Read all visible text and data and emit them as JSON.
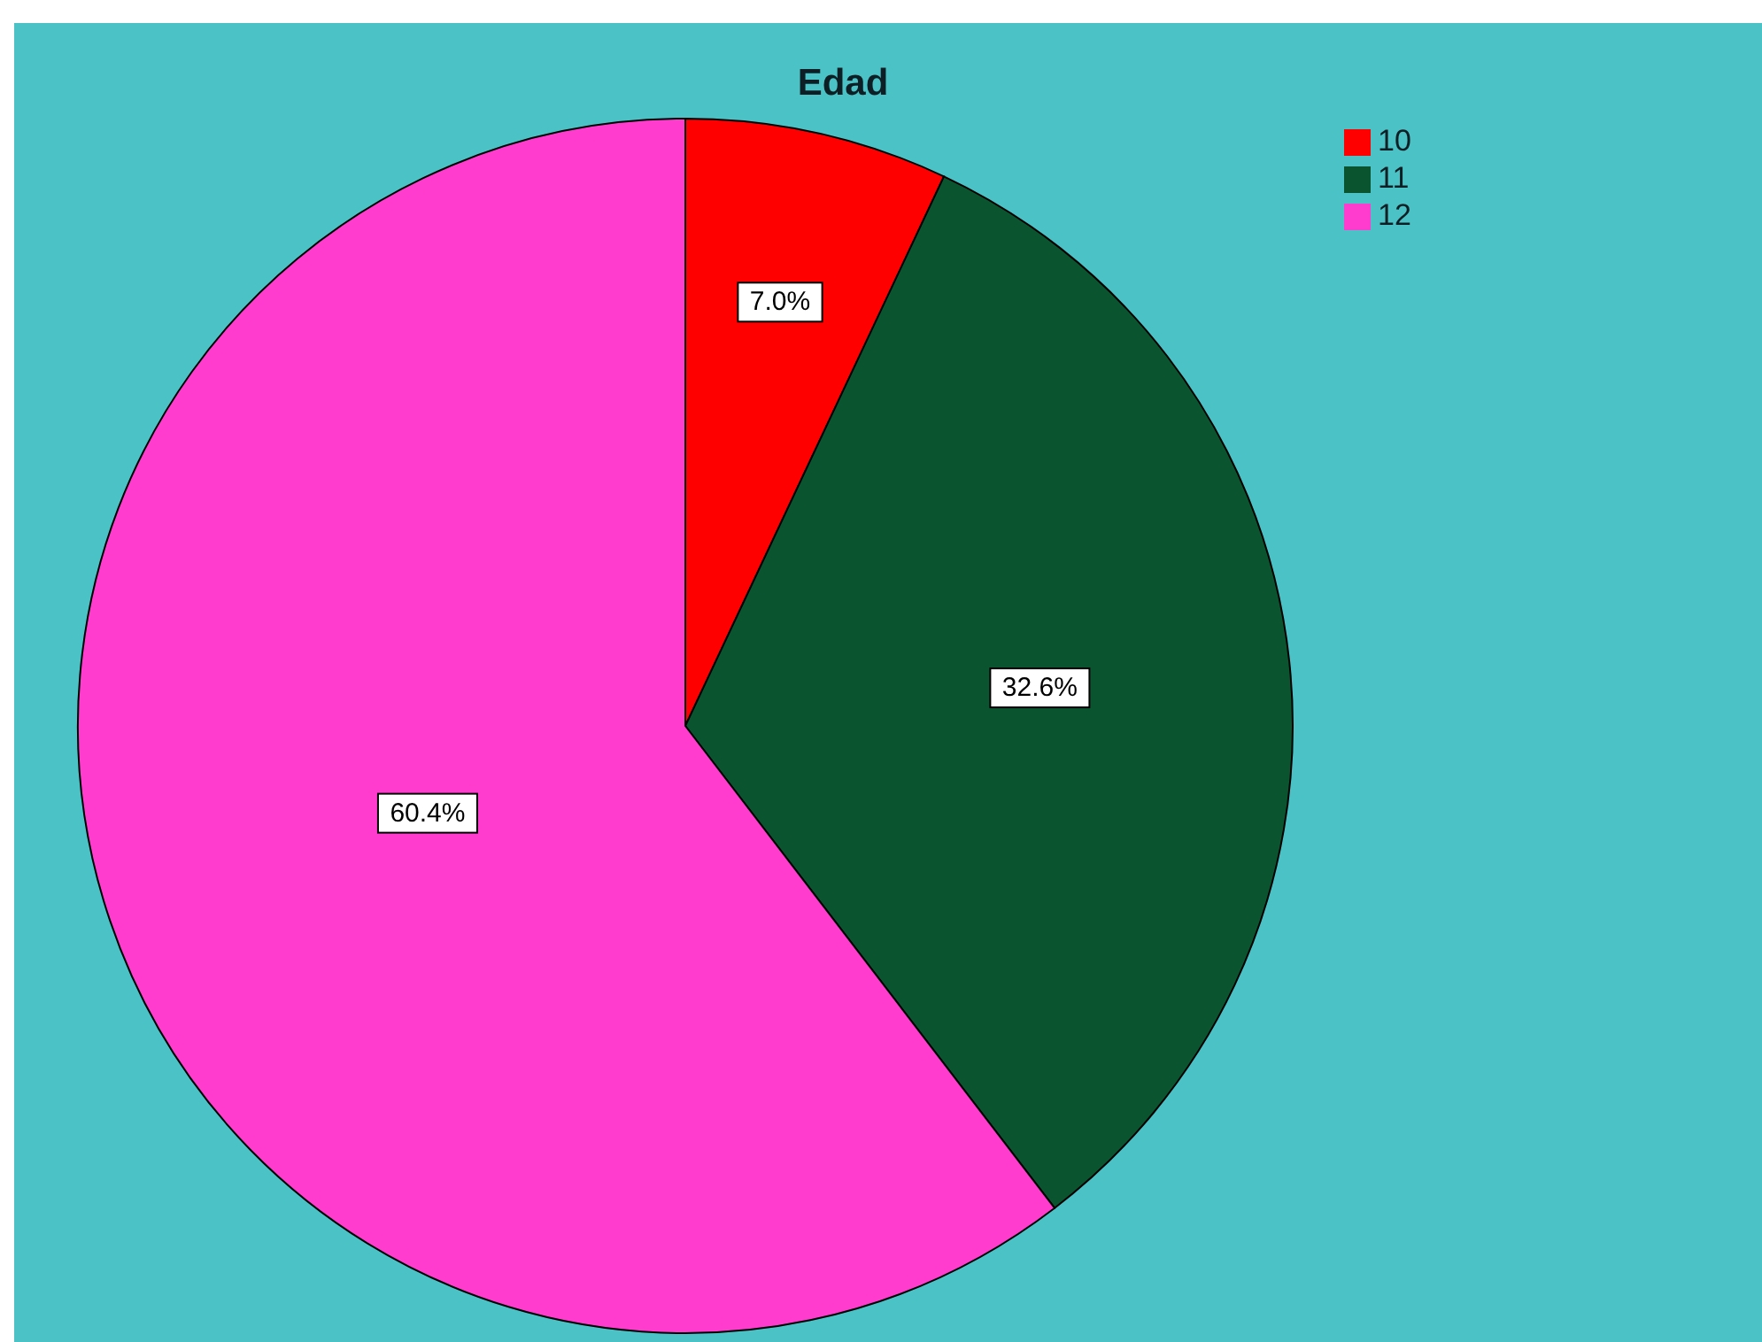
{
  "chart_data": {
    "type": "pie",
    "title": "Edad",
    "categories": [
      "10",
      "11",
      "12"
    ],
    "values": [
      7.0,
      32.6,
      60.4
    ],
    "colors": [
      "#ff0000",
      "#0a5530",
      "#ff3ccd"
    ],
    "value_labels": [
      "7.0%",
      "32.6%",
      "60.4%"
    ],
    "legend": "top right"
  }
}
